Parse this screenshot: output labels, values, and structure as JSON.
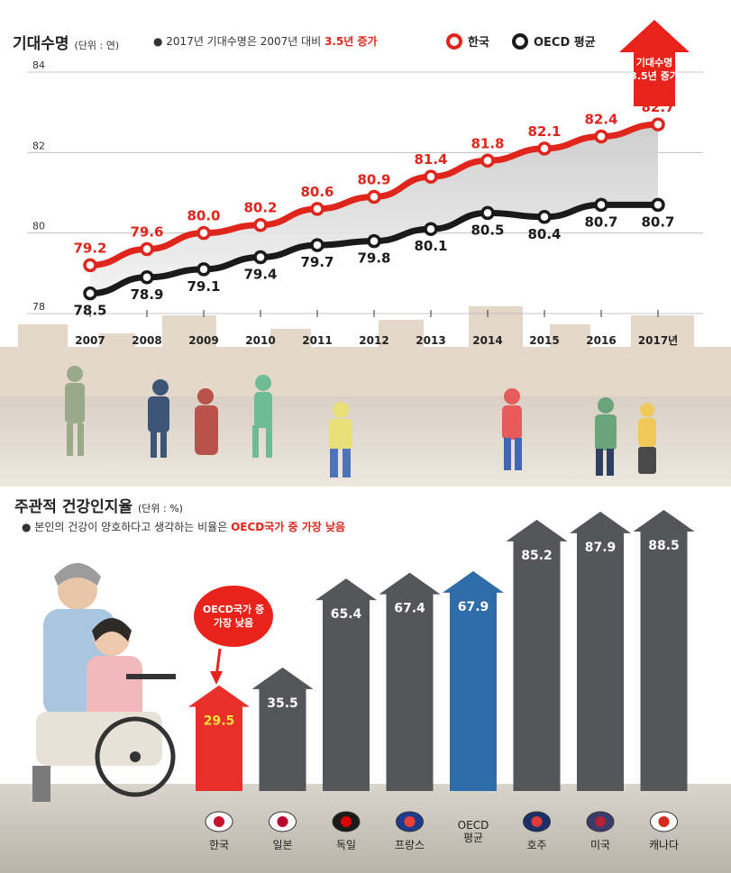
{
  "life_expectancy": {
    "title": "기대수명",
    "unit": "(단위 : 연)",
    "note_prefix": "● 2017년 기대수명은 2007년 대비 ",
    "note_highlight": "3.5년 증가",
    "legend_korea": "한국",
    "legend_oecd": "OECD 평균",
    "callout_line1": "기대수명",
    "callout_line2": "3.5년 증가",
    "year_suffix": "년"
  },
  "self_rated_health": {
    "title": "주관적 건강인지율",
    "unit": "(단위 : %)",
    "note_prefix": "● 본인의 건강이 양호하다고 생각하는 비율은 ",
    "note_highlight": "OECD국가 중 가장 낮음",
    "bubble_line1": "OECD국가 중",
    "bubble_line2": "가장 낮음"
  },
  "colors": {
    "korea": "#e0251c",
    "oecd": "#1a1a1a",
    "bar_gray": "#55565a",
    "bar_oecd": "#2f6da8",
    "bar_korea": "#e8302a"
  },
  "chart_data": [
    {
      "type": "line",
      "title": "기대수명",
      "ylabel": "",
      "x": [
        "2007",
        "2008",
        "2009",
        "2010",
        "2011",
        "2012",
        "2013",
        "2014",
        "2015",
        "2016",
        "2017"
      ],
      "ylim": [
        78,
        84
      ],
      "yticks": [
        78,
        80,
        82,
        84
      ],
      "series": [
        {
          "name": "한국",
          "values": [
            79.2,
            79.6,
            80.0,
            80.2,
            80.6,
            80.9,
            81.4,
            81.8,
            82.1,
            82.4,
            82.7
          ]
        },
        {
          "name": "OECD 평균",
          "values": [
            78.5,
            78.9,
            79.1,
            79.4,
            79.7,
            79.8,
            80.1,
            80.5,
            80.4,
            80.7,
            80.7
          ]
        }
      ],
      "grid": true
    },
    {
      "type": "bar",
      "title": "주관적 건강인지율",
      "categories": [
        "한국",
        "일본",
        "독일",
        "프랑스",
        "OECD 평균",
        "호주",
        "미국",
        "캐나다"
      ],
      "values": [
        29.5,
        35.5,
        65.4,
        67.4,
        67.9,
        85.2,
        87.9,
        88.5
      ]
    }
  ]
}
